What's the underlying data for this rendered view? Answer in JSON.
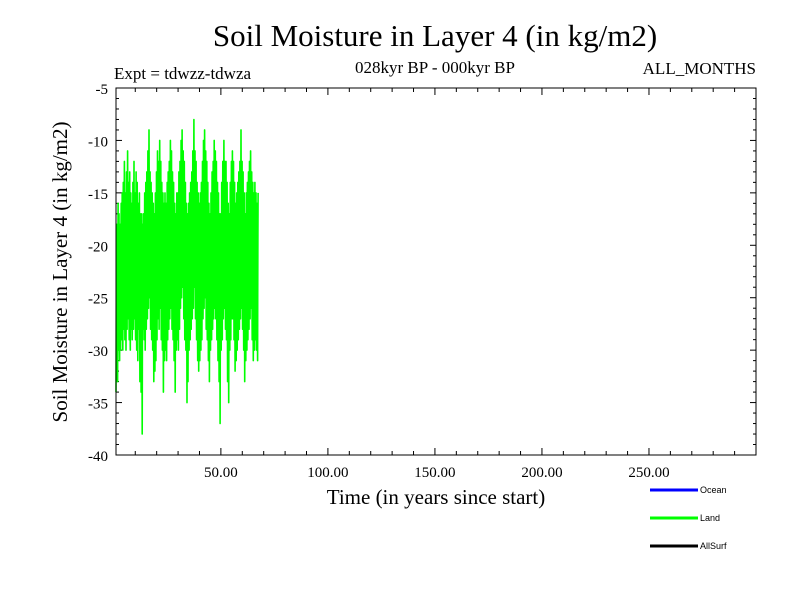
{
  "chart_data": {
    "type": "line",
    "title": "Soil Moisture in Layer 4 (in kg/m2)",
    "subtitle_left": "Expt = tdwzz-tdwza",
    "subtitle_center": "028kyr BP - 000kyr BP",
    "subtitle_right": "ALL_MONTHS",
    "xlabel": "Time (in years since start)",
    "ylabel": "Soil Moisture in Layer 4 (in kg/m2)",
    "xlim": [
      1,
      300
    ],
    "ylim": [
      -40,
      -5
    ],
    "x_ticks": [
      50,
      100,
      150,
      200,
      250
    ],
    "x_tick_labels": [
      "50.00",
      "100.00",
      "150.00",
      "200.00",
      "250.00"
    ],
    "y_ticks": [
      -40,
      -35,
      -30,
      -25,
      -20,
      -15,
      -10,
      -5
    ],
    "y_tick_labels": [
      "-40",
      "-35",
      "-30",
      "-25",
      "-20",
      "-15",
      "-10",
      "-5"
    ],
    "grid": false,
    "legend_position": "bottom-right",
    "series": [
      {
        "name": "Ocean",
        "color": "#0000ff",
        "values": []
      },
      {
        "name": "Land",
        "color": "#00ff00",
        "x_start": 1,
        "x_step": 0.0833,
        "values": [
          -34,
          -29,
          -22,
          -18,
          -26,
          -31,
          -24,
          -20,
          -27,
          -33,
          -25,
          -19,
          -16,
          -23,
          -30,
          -27,
          -21,
          -17,
          -24,
          -29,
          -31,
          -26,
          -20,
          -18,
          -22,
          -28,
          -30,
          -24,
          -19,
          -16,
          -21,
          -27,
          -29,
          -23,
          -17,
          -15,
          -22,
          -26,
          -30,
          -25,
          -18,
          -14,
          -20,
          -25,
          -28,
          -23,
          -16,
          -12,
          -18,
          -24,
          -29,
          -27,
          -21,
          -15,
          -19,
          -26,
          -30,
          -24,
          -17,
          -13,
          -20,
          -25,
          -28,
          -22,
          -16,
          -11,
          -17,
          -23,
          -27,
          -25,
          -19,
          -14,
          -21,
          -26,
          -29,
          -24,
          -18,
          -13,
          -20,
          -27,
          -30,
          -22,
          -17,
          -15,
          -23,
          -28,
          -26,
          -20,
          -16,
          -19,
          -24,
          -29,
          -27,
          -22,
          -18,
          -14,
          -21,
          -26,
          -28,
          -23,
          -17,
          -12,
          -19,
          -25,
          -27,
          -24,
          -19,
          -15,
          -20,
          -26,
          -29,
          -25,
          -18,
          -13,
          -22,
          -27,
          -30,
          -24,
          -17,
          -14,
          -21,
          -26,
          -31,
          -27,
          -20,
          -16,
          -19,
          -25,
          -28,
          -24,
          -19,
          -15,
          -22,
          -27,
          -33,
          -28,
          -22,
          -17,
          -20,
          -26,
          -29,
          -34,
          -27,
          -21,
          -17,
          -24,
          -30,
          -38,
          -29,
          -22,
          -18,
          -23,
          -28,
          -26,
          -21,
          -17,
          -20,
          -25,
          -29,
          -24,
          -19,
          -15,
          -22,
          -27,
          -30,
          -25,
          -19,
          -14,
          -20,
          -26,
          -28,
          -23,
          -18,
          -13,
          -19,
          -24,
          -27,
          -22,
          -16,
          -11,
          -17,
          -22,
          -26,
          -21,
          -15,
          -9,
          -14,
          -20,
          -25,
          -23,
          -18,
          -13,
          -19,
          -24,
          -28,
          -22,
          -17,
          -14,
          -21,
          -26,
          -29,
          -24,
          -19,
          -15,
          -22,
          -27,
          -30,
          -25,
          -20,
          -16,
          -22,
          -28,
          -33,
          -27,
          -21,
          -17,
          -23,
          -29,
          -32,
          -26,
          -20,
          -15,
          -21,
          -27,
          -31,
          -25,
          -18,
          -13,
          -20,
          -26,
          -29,
          -24,
          -17,
          -11,
          -16,
          -22,
          -27,
          -23,
          -17,
          -12,
          -18,
          -24,
          -28,
          -23,
          -16,
          -10,
          -15,
          -21,
          -26,
          -22,
          -16,
          -12,
          -19,
          -25,
          -29,
          -24,
          -18,
          -14,
          -21,
          -27,
          -30,
          -24,
          -19,
          -15,
          -22,
          -28,
          -34,
          -27,
          -20,
          -16,
          -23,
          -29,
          -31,
          -25,
          -19,
          -15,
          -21,
          -27,
          -30,
          -26,
          -20,
          -16,
          -22,
          -28,
          -31,
          -25,
          -19,
          -14,
          -20,
          -26,
          -29,
          -23,
          -17,
          -13,
          -19,
          -24,
          -28,
          -22,
          -16,
          -12,
          -18,
          -23,
          -27,
          -22,
          -16,
          -10,
          -16,
          -22,
          -26,
          -21,
          -15,
          -11,
          -18,
          -24,
          -28,
          -23,
          -17,
          -13,
          -20,
          -26,
          -29,
          -24,
          -18,
          -14,
          -21,
          -27,
          -31,
          -26,
          -20,
          -16,
          -22,
          -28,
          -34,
          -27,
          -21,
          -17,
          -23,
          -28,
          -30,
          -24,
          -19,
          -15,
          -21,
          -26,
          -29,
          -25,
          -19,
          -15,
          -22,
          -27,
          -30,
          -24,
          -18,
          -13,
          -19,
          -25,
          -28,
          -23,
          -17,
          -12,
          -18,
          -23,
          -26,
          -21,
          -15,
          -10,
          -15,
          -21,
          -25,
          -20,
          -14,
          -9,
          -14,
          -20,
          -24,
          -19,
          -14,
          -11,
          -17,
          -23,
          -27,
          -22,
          -16,
          -12,
          -19,
          -25,
          -29,
          -24,
          -18,
          -14,
          -21,
          -27,
          -30,
          -25,
          -19,
          -16,
          -22,
          -28,
          -35,
          -28,
          -22,
          -17,
          -23,
          -29,
          -33,
          -26,
          -20,
          -16,
          -22,
          -27,
          -30,
          -25,
          -19,
          -15,
          -21,
          -26,
          -29,
          -24,
          -18,
          -14,
          -20,
          -25,
          -28,
          -23,
          -17,
          -13,
          -19,
          -24,
          -27,
          -22,
          -16,
          -11,
          -17,
          -22,
          -26,
          -21,
          -15,
          -8,
          -14,
          -20,
          -24,
          -20,
          -15,
          -11,
          -17,
          -23,
          -27,
          -22,
          -16,
          -12,
          -19,
          -25,
          -29,
          -24,
          -18,
          -14,
          -21,
          -27,
          -31,
          -25,
          -19,
          -15,
          -22,
          -28,
          -32,
          -26,
          -20,
          -16,
          -22,
          -28,
          -31,
          -25,
          -19,
          -15,
          -21,
          -27,
          -30,
          -24,
          -18,
          -14,
          -20,
          -26,
          -29,
          -23,
          -17,
          -12,
          -18,
          -24,
          -27,
          -22,
          -16,
          -10,
          -16,
          -22,
          -26,
          -21,
          -15,
          -9,
          -15,
          -21,
          -25,
          -20,
          -15,
          -11,
          -17,
          -23,
          -28,
          -22,
          -16,
          -12,
          -19,
          -25,
          -29,
          -24,
          -18,
          -14,
          -21,
          -27,
          -31,
          -26,
          -20,
          -16,
          -22,
          -28,
          -33,
          -27,
          -21,
          -17,
          -23,
          -29,
          -30,
          -24,
          -18,
          -15,
          -21,
          -27,
          -29,
          -23,
          -17,
          -13,
          -19,
          -25,
          -28,
          -22,
          -16,
          -12,
          -18,
          -24,
          -27,
          -21,
          -15,
          -10,
          -16,
          -22,
          -26,
          -21,
          -15,
          -11,
          -17,
          -23,
          -27,
          -22,
          -16,
          -12,
          -19,
          -25,
          -29,
          -24,
          -18,
          -14,
          -21,
          -27,
          -31,
          -25,
          -19,
          -15,
          -22,
          -28,
          -33,
          -27,
          -21,
          -17,
          -23,
          -29,
          -37,
          -29,
          -22,
          -17,
          -23,
          -28,
          -30,
          -24,
          -18,
          -14,
          -20,
          -26,
          -29,
          -23,
          -17,
          -12,
          -18,
          -24,
          -27,
          -21,
          -15,
          -10,
          -16,
          -22,
          -26,
          -20,
          -14,
          -12,
          -18,
          -24,
          -28,
          -22,
          -16,
          -12,
          -19,
          -25,
          -29,
          -24,
          -18,
          -14,
          -21,
          -27,
          -33,
          -27,
          -20,
          -16,
          -22,
          -28,
          -35,
          -28,
          -22,
          -17,
          -23,
          -28,
          -30,
          -24,
          -18,
          -14,
          -20,
          -26,
          -29,
          -23,
          -17,
          -12,
          -18,
          -24,
          -27,
          -22,
          -16,
          -11,
          -17,
          -23,
          -27,
          -22,
          -16,
          -12,
          -19,
          -25,
          -29,
          -24,
          -18,
          -14,
          -21,
          -27,
          -32,
          -26,
          -20,
          -16,
          -22,
          -28,
          -31,
          -25,
          -19,
          -15,
          -21,
          -27,
          -30,
          -24,
          -18,
          -14,
          -20,
          -26,
          -29,
          -23,
          -17,
          -13,
          -19,
          -25,
          -28,
          -22,
          -16,
          -12,
          -18,
          -24,
          -27,
          -21,
          -15,
          -9,
          -15,
          -21,
          -26,
          -21,
          -16,
          -12,
          -18,
          -24,
          -28,
          -23,
          -17,
          -13,
          -20,
          -26,
          -30,
          -25,
          -19,
          -15,
          -22,
          -28,
          -33,
          -27,
          -21,
          -17,
          -23,
          -29,
          -31,
          -25,
          -19,
          -15,
          -21,
          -27,
          -30,
          -24,
          -18,
          -14,
          -20,
          -26,
          -29,
          -23,
          -17,
          -13,
          -19,
          -25,
          -28,
          -22,
          -16,
          -12,
          -18,
          -24,
          -27,
          -21,
          -15,
          -11,
          -17,
          -23,
          -26,
          -21,
          -16,
          -13,
          -19,
          -25,
          -29,
          -24,
          -18,
          -14,
          -21,
          -27,
          -31,
          -25,
          -19,
          -15,
          -22,
          -28,
          -30,
          -24,
          -18,
          -14,
          -20,
          -26,
          -29,
          -23,
          -17,
          -15,
          -21,
          -27,
          -30,
          -24,
          -18,
          -16,
          -22,
          -28,
          -31,
          -25,
          -19,
          -15
        ]
      },
      {
        "name": "AllSurf",
        "color": "#000000",
        "values": []
      }
    ]
  }
}
